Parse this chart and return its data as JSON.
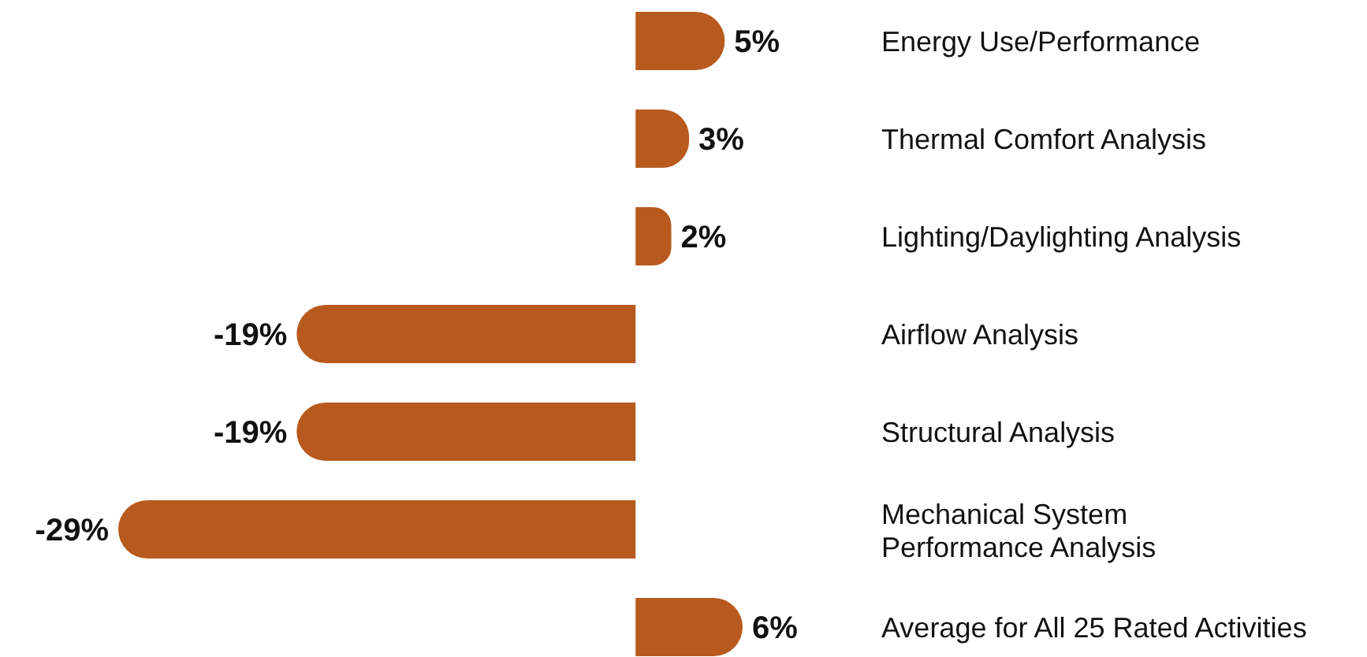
{
  "chart_data": {
    "type": "bar",
    "orientation": "horizontal",
    "categories": [
      "Energy Use/Performance",
      "Thermal Comfort Analysis",
      "Lighting/Daylighting Analysis",
      "Airflow Analysis",
      "Structural Analysis",
      "Mechanical System Performance Analysis",
      "Average for All 25 Rated Activities"
    ],
    "values": [
      5,
      3,
      2,
      -19,
      -19,
      -29,
      6
    ],
    "value_labels": [
      "5%",
      "3%",
      "2%",
      "-19%",
      "-19%",
      "-29%",
      "6%"
    ],
    "color": "#b85a1e"
  }
}
